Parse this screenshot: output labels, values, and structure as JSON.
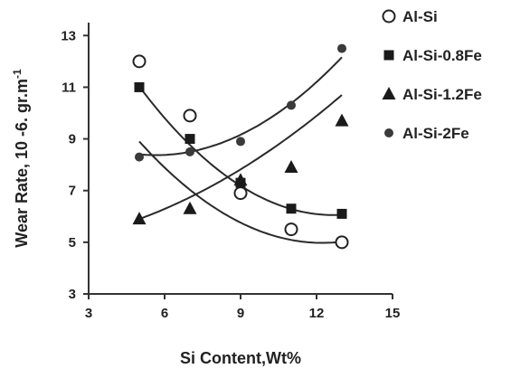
{
  "chart_data": {
    "type": "scatter",
    "xlabel": "Si Content,Wt%",
    "ylabel_main": "Wear Rate, 10 -6. gr.m",
    "ylabel_sup": "-1",
    "xlim": [
      3,
      15
    ],
    "ylim": [
      3,
      13.5
    ],
    "xticks": [
      "3",
      "6",
      "9",
      "12",
      "15"
    ],
    "yticks": [
      "3",
      "5",
      "7",
      "9",
      "11",
      "13"
    ],
    "legend_position": "top-right",
    "grid": false,
    "series": [
      {
        "name": "Al-Si",
        "marker": "open-circle",
        "color": "#222222",
        "x": [
          5,
          7,
          9,
          11,
          13
        ],
        "y": [
          12.0,
          9.9,
          6.9,
          5.5,
          5.0
        ],
        "trend": [
          0.075,
          -1.835,
          16.2
        ]
      },
      {
        "name": "Al-Si-0.8Fe",
        "marker": "square",
        "color": "#1a1a1a",
        "x": [
          5,
          7,
          9,
          11,
          13
        ],
        "y": [
          11.0,
          9.0,
          7.3,
          6.3,
          6.1
        ],
        "trend": [
          0.085,
          -2.15,
          19.65
        ]
      },
      {
        "name": "Al-Si-1.2Fe",
        "marker": "triangle",
        "color": "#1a1a1a",
        "x": [
          5,
          7,
          9,
          11,
          13
        ],
        "y": [
          5.9,
          6.3,
          7.4,
          7.9,
          9.7
        ],
        "trend": [
          0.03,
          0.06,
          4.85
        ]
      },
      {
        "name": "Al-Si-2Fe",
        "marker": "dot",
        "color": "#3a3a3a",
        "x": [
          5,
          7,
          9,
          11,
          13
        ],
        "y": [
          8.3,
          8.5,
          8.9,
          10.3,
          12.5
        ],
        "trend": [
          0.07,
          -0.79,
          10.6
        ]
      }
    ]
  }
}
